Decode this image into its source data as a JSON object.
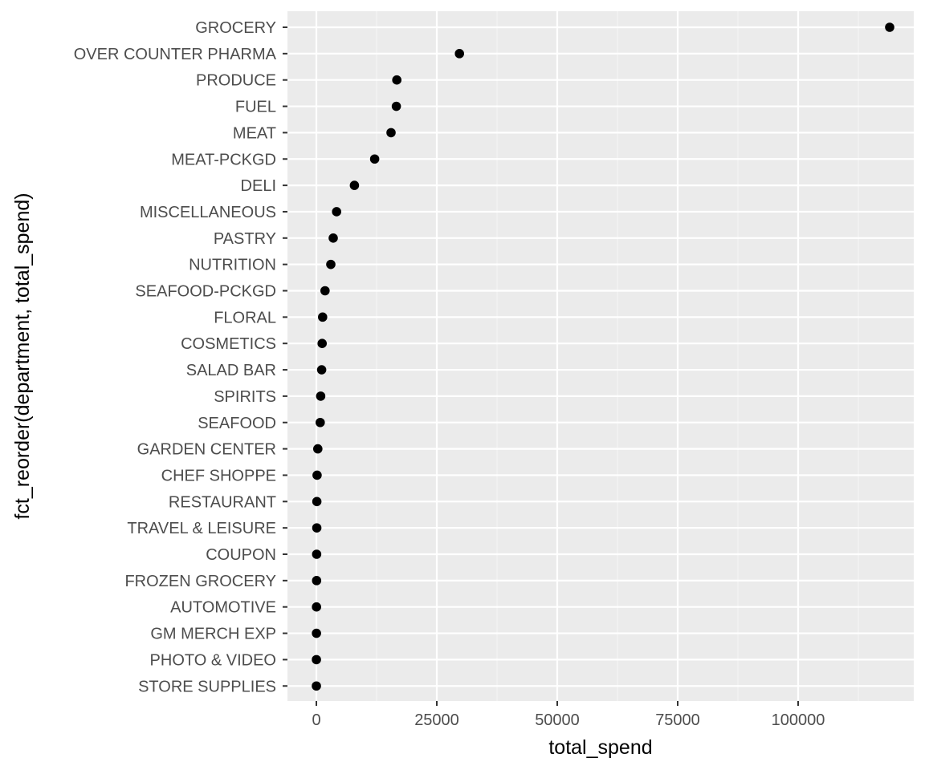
{
  "chart_data": {
    "type": "scatter",
    "title": "",
    "xlabel": "total_spend",
    "ylabel": "fct_reorder(department, total_spend)",
    "xlim": [
      -6000,
      124000
    ],
    "x_ticks": [
      0,
      25000,
      50000,
      75000,
      100000
    ],
    "x_tick_labels": [
      "0",
      "25000",
      "50000",
      "75000",
      "100000"
    ],
    "grid": true,
    "categories": [
      "GROCERY",
      "OVER COUNTER PHARMA",
      "PRODUCE",
      "FUEL",
      "MEAT",
      "MEAT-PCKGD",
      "DELI",
      "MISCELLANEOUS",
      "PASTRY",
      "NUTRITION",
      "SEAFOOD-PCKGD",
      "FLORAL",
      "COSMETICS",
      "SALAD BAR",
      "SPIRITS",
      "SEAFOOD",
      "GARDEN CENTER",
      "CHEF SHOPPE",
      "RESTAURANT",
      "TRAVEL & LEISURE",
      "COUPON",
      "FROZEN GROCERY",
      "AUTOMOTIVE",
      "GM MERCH EXP",
      "PHOTO & VIDEO",
      "STORE SUPPLIES"
    ],
    "values": [
      119000,
      29700,
      16700,
      16600,
      15500,
      12100,
      7900,
      4200,
      3500,
      3000,
      1800,
      1300,
      1200,
      1100,
      900,
      800,
      300,
      150,
      100,
      90,
      60,
      50,
      30,
      20,
      10,
      5
    ],
    "colors": {
      "panel": "#ebebeb",
      "grid_major": "#ffffff",
      "grid_minor": "#f4f4f4",
      "point": "#000000",
      "tick": "#333333"
    }
  }
}
